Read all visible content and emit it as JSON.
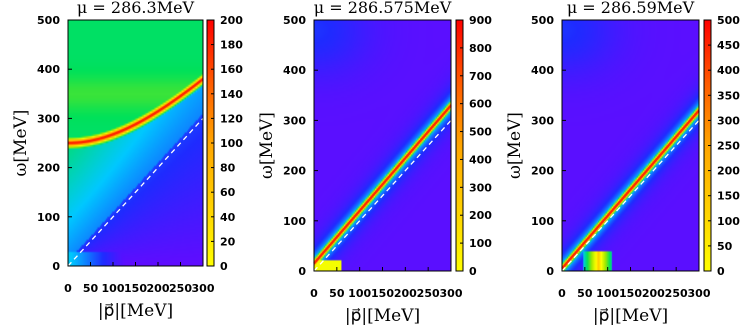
{
  "chart_data": [
    {
      "type": "heatmap",
      "title": "μ = 286.3MeV",
      "xlabel": "|p⃗|[MeV]",
      "ylabel": "ω[MeV]",
      "xlim": [
        0,
        300
      ],
      "ylim": [
        0,
        500
      ],
      "x_ticks": [
        0,
        50,
        100,
        150,
        200,
        250,
        300
      ],
      "y_ticks": [
        0,
        100,
        200,
        300,
        400,
        500
      ],
      "colorbar_range": [
        0,
        200
      ],
      "colorbar_ticks": [
        0,
        20,
        40,
        60,
        80,
        100,
        120,
        140,
        160,
        180,
        200
      ],
      "colormap": [
        "#7a00ff",
        "#1f2bff",
        "#00c8ff",
        "#00e15a",
        "#9ee800",
        "#ffff00",
        "#ffa500",
        "#ff0000"
      ],
      "peak_curve": {
        "omega_at_p0": 250,
        "omega_at_p300": 380
      },
      "light_cone": "ω = |p⃗| (dashed white)"
    },
    {
      "type": "heatmap",
      "title": "μ = 286.575MeV",
      "xlabel": "|p⃗|[MeV]",
      "ylabel": "ω[MeV]",
      "xlim": [
        0,
        300
      ],
      "ylim": [
        0,
        500
      ],
      "x_ticks": [
        0,
        50,
        100,
        150,
        200,
        250,
        300
      ],
      "y_ticks": [
        0,
        100,
        200,
        300,
        400,
        500
      ],
      "colorbar_range": [
        0,
        900
      ],
      "colorbar_ticks": [
        0,
        100,
        200,
        300,
        400,
        500,
        600,
        700,
        800,
        900
      ],
      "colormap": [
        "#7a00ff",
        "#1f2bff",
        "#00c8ff",
        "#00e15a",
        "#9ee800",
        "#ffff00",
        "#ffa500",
        "#ff0000"
      ],
      "peak_curve": {
        "omega_at_p0": 15,
        "omega_at_p300": 330
      },
      "light_cone": "ω = |p⃗| (dashed white)"
    },
    {
      "type": "heatmap",
      "title": "μ = 286.59MeV",
      "xlabel": "|p⃗|[MeV]",
      "ylabel": "ω[MeV]",
      "xlim": [
        0,
        300
      ],
      "ylim": [
        0,
        500
      ],
      "x_ticks": [
        0,
        50,
        100,
        150,
        200,
        250,
        300
      ],
      "y_ticks": [
        0,
        100,
        200,
        300,
        400,
        500
      ],
      "colorbar_range": [
        0,
        500
      ],
      "colorbar_ticks": [
        0,
        50,
        100,
        150,
        200,
        250,
        300,
        350,
        400,
        450,
        500
      ],
      "colormap": [
        "#7a00ff",
        "#1f2bff",
        "#00c8ff",
        "#00e15a",
        "#9ee800",
        "#ffff00",
        "#ffa500",
        "#ff0000"
      ],
      "peak_curve": {
        "omega_at_p0": 5,
        "omega_at_p300": 320
      },
      "light_cone": "ω = |p⃗| (dashed white)"
    }
  ]
}
